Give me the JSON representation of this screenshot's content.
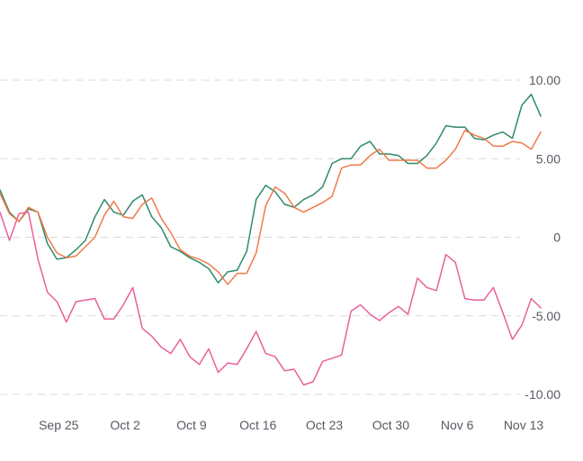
{
  "chart_data": {
    "type": "line",
    "title": "",
    "xlabel": "",
    "ylabel": "",
    "ylim": [
      -10.8,
      11.2
    ],
    "y_ticks": [
      10,
      5,
      0,
      -5,
      -10
    ],
    "y_tick_labels": [
      "10.00",
      "5.00",
      "0",
      "-5.00",
      "-10.00"
    ],
    "x_range": [
      "2023-09-19",
      "2023-11-13"
    ],
    "x_ticks": [
      "2023-09-25",
      "2023-10-02",
      "2023-10-09",
      "2023-10-16",
      "2023-10-23",
      "2023-10-30",
      "2023-11-06",
      "2023-11-13"
    ],
    "x_tick_labels": [
      "Sep 25",
      "Oct 2",
      "Oct 9",
      "Oct 16",
      "Oct 23",
      "Oct 30",
      "Nov 6",
      "Nov 13"
    ],
    "grid": true,
    "legend": "none",
    "series": [
      {
        "color": "#2e8b67",
        "points": [
          [
            "2023-09-19",
            3.0
          ],
          [
            "2023-09-20",
            1.6
          ],
          [
            "2023-09-21",
            1.0
          ],
          [
            "2023-09-22",
            1.8
          ],
          [
            "2023-09-23",
            1.6
          ],
          [
            "2023-09-24",
            -0.4
          ],
          [
            "2023-09-25",
            -1.4
          ],
          [
            "2023-09-26",
            -1.3
          ],
          [
            "2023-09-27",
            -0.8
          ],
          [
            "2023-09-28",
            -0.2
          ],
          [
            "2023-09-29",
            1.3
          ],
          [
            "2023-09-30",
            2.4
          ],
          [
            "2023-10-01",
            1.6
          ],
          [
            "2023-10-02",
            1.4
          ],
          [
            "2023-10-03",
            2.3
          ],
          [
            "2023-10-04",
            2.7
          ],
          [
            "2023-10-05",
            1.3
          ],
          [
            "2023-10-06",
            0.6
          ],
          [
            "2023-10-07",
            -0.6
          ],
          [
            "2023-10-08",
            -0.9
          ],
          [
            "2023-10-09",
            -1.3
          ],
          [
            "2023-10-10",
            -1.6
          ],
          [
            "2023-10-11",
            -2.0
          ],
          [
            "2023-10-12",
            -2.9
          ],
          [
            "2023-10-13",
            -2.2
          ],
          [
            "2023-10-14",
            -2.1
          ],
          [
            "2023-10-15",
            -0.9
          ],
          [
            "2023-10-16",
            2.4
          ],
          [
            "2023-10-17",
            3.3
          ],
          [
            "2023-10-18",
            2.9
          ],
          [
            "2023-10-19",
            2.1
          ],
          [
            "2023-10-20",
            1.9
          ],
          [
            "2023-10-21",
            2.4
          ],
          [
            "2023-10-22",
            2.7
          ],
          [
            "2023-10-23",
            3.2
          ],
          [
            "2023-10-24",
            4.7
          ],
          [
            "2023-10-25",
            5.0
          ],
          [
            "2023-10-26",
            5.0
          ],
          [
            "2023-10-27",
            5.8
          ],
          [
            "2023-10-28",
            6.1
          ],
          [
            "2023-10-29",
            5.3
          ],
          [
            "2023-10-30",
            5.3
          ],
          [
            "2023-10-31",
            5.2
          ],
          [
            "2023-11-01",
            4.7
          ],
          [
            "2023-11-02",
            4.7
          ],
          [
            "2023-11-03",
            5.2
          ],
          [
            "2023-11-04",
            6.0
          ],
          [
            "2023-11-05",
            7.1
          ],
          [
            "2023-11-06",
            7.0
          ],
          [
            "2023-11-07",
            7.0
          ],
          [
            "2023-11-08",
            6.3
          ],
          [
            "2023-11-09",
            6.2
          ],
          [
            "2023-11-10",
            6.5
          ],
          [
            "2023-11-11",
            6.7
          ],
          [
            "2023-11-12",
            6.3
          ],
          [
            "2023-11-13",
            8.4
          ],
          [
            "2023-11-14",
            9.1
          ],
          [
            "2023-11-15",
            7.7
          ]
        ]
      },
      {
        "color": "#f07a4a",
        "points": [
          [
            "2023-09-19",
            2.8
          ],
          [
            "2023-09-20",
            1.5
          ],
          [
            "2023-09-21",
            1.0
          ],
          [
            "2023-09-22",
            1.9
          ],
          [
            "2023-09-23",
            1.6
          ],
          [
            "2023-09-24",
            0.0
          ],
          [
            "2023-09-25",
            -1.0
          ],
          [
            "2023-09-26",
            -1.3
          ],
          [
            "2023-09-27",
            -1.2
          ],
          [
            "2023-09-28",
            -0.6
          ],
          [
            "2023-09-29",
            0.0
          ],
          [
            "2023-09-30",
            1.4
          ],
          [
            "2023-10-01",
            2.3
          ],
          [
            "2023-10-02",
            1.3
          ],
          [
            "2023-10-03",
            1.2
          ],
          [
            "2023-10-04",
            2.1
          ],
          [
            "2023-10-05",
            2.5
          ],
          [
            "2023-10-06",
            1.2
          ],
          [
            "2023-10-07",
            0.3
          ],
          [
            "2023-10-08",
            -0.8
          ],
          [
            "2023-10-09",
            -1.2
          ],
          [
            "2023-10-10",
            -1.4
          ],
          [
            "2023-10-11",
            -1.7
          ],
          [
            "2023-10-12",
            -2.2
          ],
          [
            "2023-10-13",
            -3.0
          ],
          [
            "2023-10-14",
            -2.3
          ],
          [
            "2023-10-15",
            -2.3
          ],
          [
            "2023-10-16",
            -1.0
          ],
          [
            "2023-10-17",
            2.0
          ],
          [
            "2023-10-18",
            3.2
          ],
          [
            "2023-10-19",
            2.8
          ],
          [
            "2023-10-20",
            1.9
          ],
          [
            "2023-10-21",
            1.6
          ],
          [
            "2023-10-22",
            1.9
          ],
          [
            "2023-10-23",
            2.2
          ],
          [
            "2023-10-24",
            2.6
          ],
          [
            "2023-10-25",
            4.4
          ],
          [
            "2023-10-26",
            4.6
          ],
          [
            "2023-10-27",
            4.6
          ],
          [
            "2023-10-28",
            5.2
          ],
          [
            "2023-10-29",
            5.6
          ],
          [
            "2023-10-30",
            4.9
          ],
          [
            "2023-10-31",
            4.9
          ],
          [
            "2023-11-01",
            4.9
          ],
          [
            "2023-11-02",
            4.9
          ],
          [
            "2023-11-03",
            4.4
          ],
          [
            "2023-11-04",
            4.4
          ],
          [
            "2023-11-05",
            4.9
          ],
          [
            "2023-11-06",
            5.6
          ],
          [
            "2023-11-07",
            6.8
          ],
          [
            "2023-11-08",
            6.5
          ],
          [
            "2023-11-09",
            6.3
          ],
          [
            "2023-11-10",
            5.8
          ],
          [
            "2023-11-11",
            5.8
          ],
          [
            "2023-11-12",
            6.1
          ],
          [
            "2023-11-13",
            6.0
          ],
          [
            "2023-11-14",
            5.6
          ],
          [
            "2023-11-15",
            6.7
          ]
        ]
      },
      {
        "color": "#e8619a",
        "points": [
          [
            "2023-09-19",
            1.6
          ],
          [
            "2023-09-20",
            -0.2
          ],
          [
            "2023-09-21",
            1.5
          ],
          [
            "2023-09-22",
            1.6
          ],
          [
            "2023-09-23",
            -1.4
          ],
          [
            "2023-09-24",
            -3.5
          ],
          [
            "2023-09-25",
            -4.1
          ],
          [
            "2023-09-26",
            -5.4
          ],
          [
            "2023-09-27",
            -4.1
          ],
          [
            "2023-09-28",
            -4.0
          ],
          [
            "2023-09-29",
            -3.9
          ],
          [
            "2023-09-30",
            -5.2
          ],
          [
            "2023-10-01",
            -5.2
          ],
          [
            "2023-10-02",
            -4.3
          ],
          [
            "2023-10-03",
            -3.2
          ],
          [
            "2023-10-04",
            -5.8
          ],
          [
            "2023-10-05",
            -6.3
          ],
          [
            "2023-10-06",
            -7.0
          ],
          [
            "2023-10-07",
            -7.4
          ],
          [
            "2023-10-08",
            -6.5
          ],
          [
            "2023-10-09",
            -7.6
          ],
          [
            "2023-10-10",
            -8.1
          ],
          [
            "2023-10-11",
            -7.1
          ],
          [
            "2023-10-12",
            -8.6
          ],
          [
            "2023-10-13",
            -8.0
          ],
          [
            "2023-10-14",
            -8.1
          ],
          [
            "2023-10-15",
            -7.1
          ],
          [
            "2023-10-16",
            -6.0
          ],
          [
            "2023-10-17",
            -7.4
          ],
          [
            "2023-10-18",
            -7.6
          ],
          [
            "2023-10-19",
            -8.5
          ],
          [
            "2023-10-20",
            -8.4
          ],
          [
            "2023-10-21",
            -9.4
          ],
          [
            "2023-10-22",
            -9.2
          ],
          [
            "2023-10-23",
            -7.9
          ],
          [
            "2023-10-24",
            -7.7
          ],
          [
            "2023-10-25",
            -7.5
          ],
          [
            "2023-10-26",
            -4.7
          ],
          [
            "2023-10-27",
            -4.3
          ],
          [
            "2023-10-28",
            -4.9
          ],
          [
            "2023-10-29",
            -5.3
          ],
          [
            "2023-10-30",
            -4.8
          ],
          [
            "2023-10-31",
            -4.4
          ],
          [
            "2023-11-01",
            -4.9
          ],
          [
            "2023-11-02",
            -2.6
          ],
          [
            "2023-11-03",
            -3.2
          ],
          [
            "2023-11-04",
            -3.4
          ],
          [
            "2023-11-05",
            -1.1
          ],
          [
            "2023-11-06",
            -1.6
          ],
          [
            "2023-11-07",
            -3.9
          ],
          [
            "2023-11-08",
            -4.0
          ],
          [
            "2023-11-09",
            -4.0
          ],
          [
            "2023-11-10",
            -3.2
          ],
          [
            "2023-11-11",
            -4.8
          ],
          [
            "2023-11-12",
            -6.5
          ],
          [
            "2023-11-13",
            -5.6
          ],
          [
            "2023-11-14",
            -3.9
          ],
          [
            "2023-11-15",
            -4.5
          ]
        ]
      }
    ]
  }
}
